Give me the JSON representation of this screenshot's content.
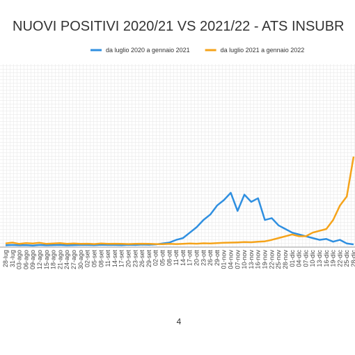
{
  "chart_data": {
    "type": "line",
    "title": "NUOVI POSITIVI 2020/21 VS 2021/22 - ATS INSUBR",
    "categories": [
      "28-lug",
      "31-lug",
      "03-ago",
      "06-ago",
      "09-ago",
      "12-ago",
      "15-ago",
      "18-ago",
      "21-ago",
      "24-ago",
      "27-ago",
      "30-ago",
      "02-set",
      "05-set",
      "08-set",
      "11-set",
      "14-set",
      "17-set",
      "20-set",
      "23-set",
      "26-set",
      "29-set",
      "02-ott",
      "05-ott",
      "08-ott",
      "11-ott",
      "14-ott",
      "17-ott",
      "20-ott",
      "23-ott",
      "26-ott",
      "29-ott",
      "01-nov",
      "04-nov",
      "07-nov",
      "10-nov",
      "13-nov",
      "16-nov",
      "19-nov",
      "22-nov",
      "25-nov",
      "28-nov",
      "01-dic",
      "04-dic",
      "07-dic",
      "10-dic",
      "13-dic",
      "16-dic",
      "19-dic",
      "22-dic",
      "25-dic",
      "28-dic"
    ],
    "series": [
      {
        "name": "da luglio 2020 a gennaio 2021",
        "color": "#2f8fe0",
        "values": [
          10,
          12,
          10,
          11,
          9,
          12,
          10,
          11,
          12,
          10,
          11,
          12,
          12,
          11,
          13,
          12,
          12,
          11,
          13,
          12,
          14,
          13,
          15,
          20,
          25,
          40,
          50,
          80,
          110,
          150,
          180,
          230,
          260,
          300,
          200,
          290,
          250,
          270,
          150,
          160,
          120,
          100,
          80,
          70,
          60,
          50,
          40,
          45,
          30,
          40,
          20,
          15
        ]
      },
      {
        "name": "da luglio 2021 a gennaio 2022",
        "color": "#f5a31a",
        "values": [
          20,
          25,
          18,
          22,
          20,
          24,
          18,
          20,
          22,
          18,
          20,
          18,
          19,
          17,
          20,
          18,
          19,
          18,
          17,
          18,
          19,
          18,
          17,
          16,
          18,
          17,
          18,
          20,
          19,
          21,
          20,
          22,
          24,
          25,
          26,
          28,
          27,
          30,
          32,
          40,
          50,
          60,
          70,
          60,
          60,
          80,
          90,
          100,
          150,
          230,
          280,
          500
        ]
      }
    ],
    "ylim": [
      0,
      1000
    ],
    "page_number": "4"
  }
}
